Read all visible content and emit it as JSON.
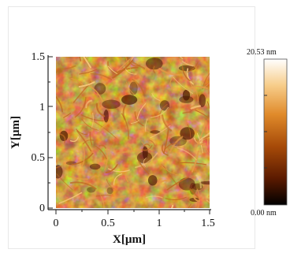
{
  "x_axis": {
    "title": "X[µm]",
    "ticks": [
      "0",
      "0.5",
      "1",
      "1.5"
    ]
  },
  "y_axis": {
    "title": "Y[µm]",
    "ticks": [
      "0",
      "0.5",
      "1",
      "1.5"
    ]
  },
  "colorbar": {
    "max_label": "20.53 nm",
    "min_label": "0.00 nm",
    "colors": [
      "#000000",
      "#5a1a00",
      "#a64a08",
      "#e08a2a",
      "#f7cd8a",
      "#ffffff"
    ]
  },
  "image": {
    "description_colors": [
      "#5e1e04",
      "#9c4a10",
      "#e6a04a"
    ]
  }
}
